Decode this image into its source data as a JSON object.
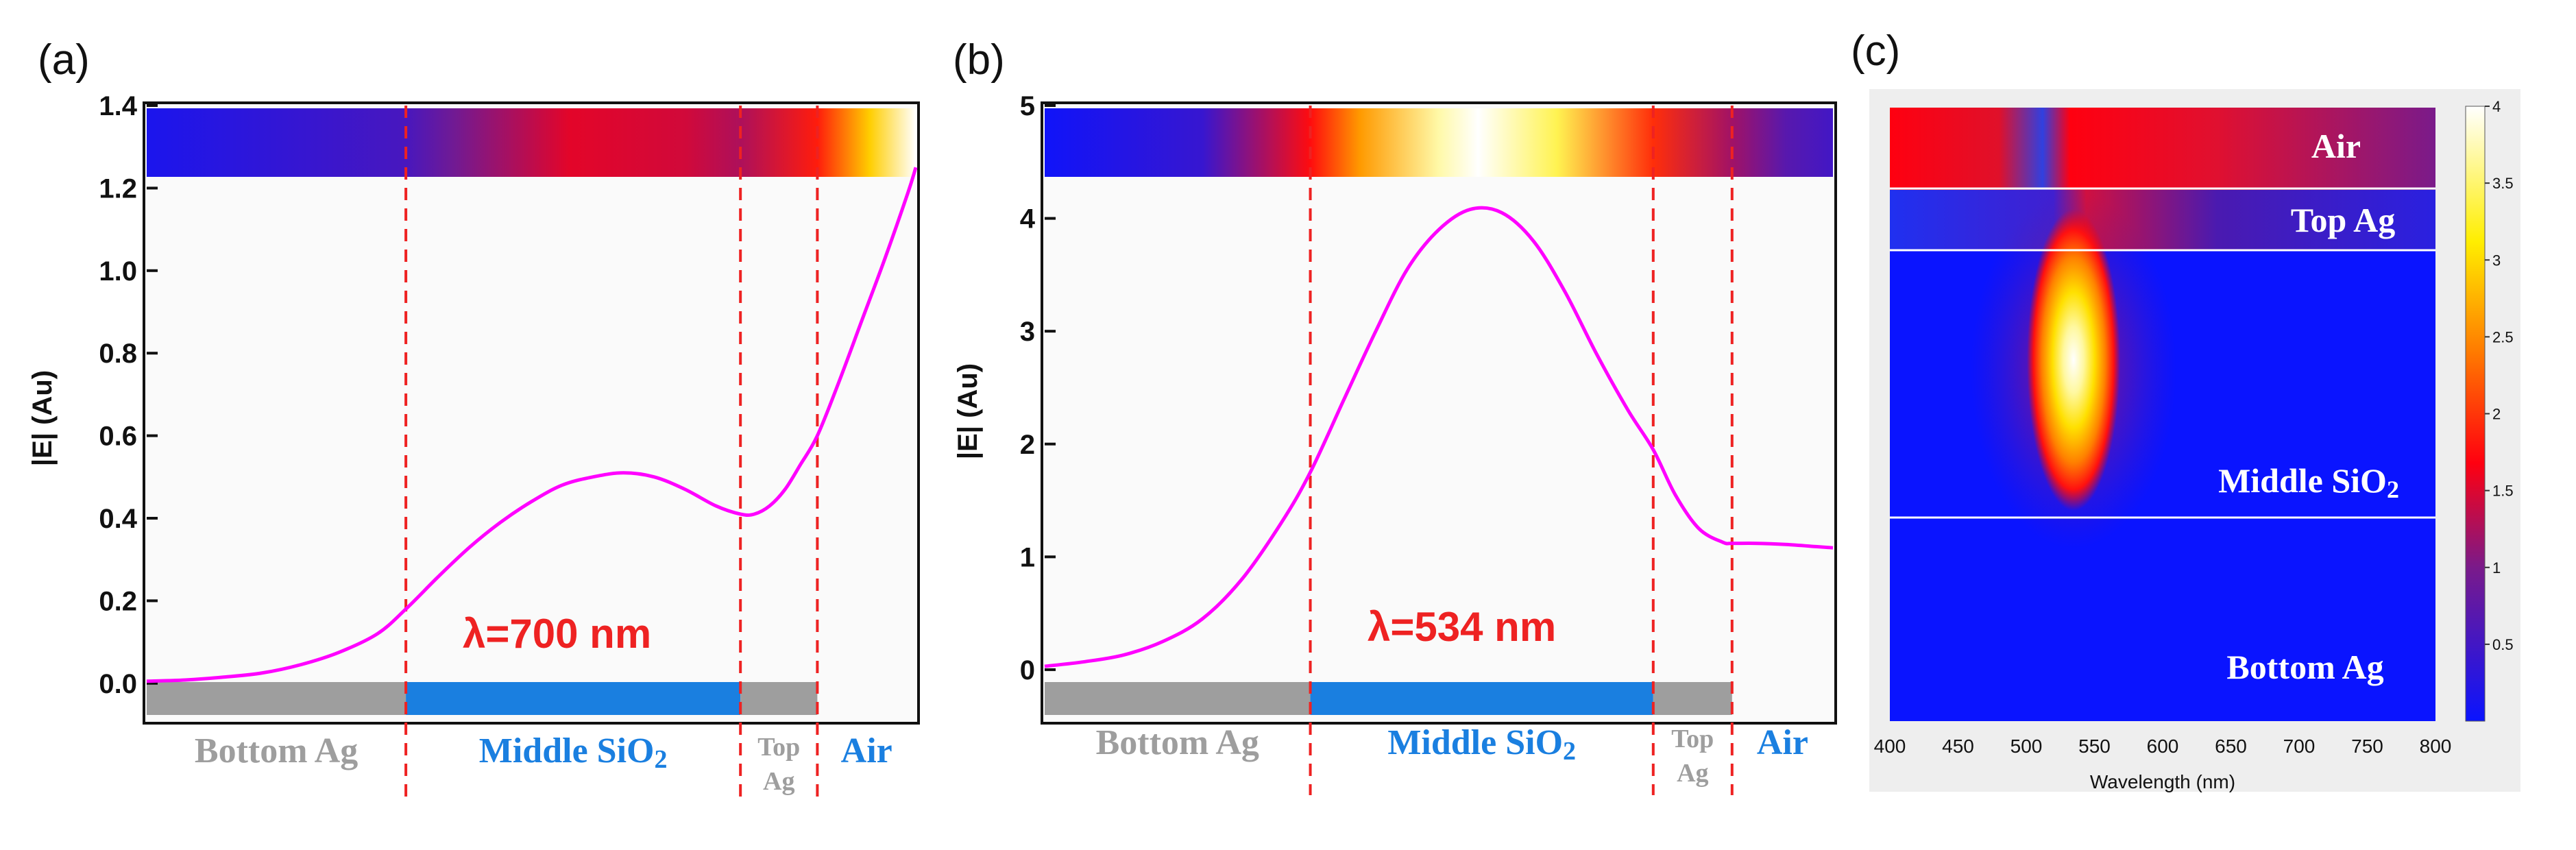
{
  "chart_data": [
    {
      "panel": "(a)",
      "type": "line",
      "ylabel": "|E| (Au)",
      "ylim": [
        -0.09,
        1.4
      ],
      "yticks": [
        "0.0",
        "0.2",
        "0.4",
        "0.6",
        "0.8",
        "1.0",
        "1.2",
        "1.4"
      ],
      "annotation": "λ=700 nm",
      "layers": [
        {
          "name": "Bottom Ag",
          "label": "Bottom Ag",
          "color": "#9e9e9e",
          "from": 0.0,
          "to": 0.337
        },
        {
          "name": "Middle SiO2",
          "label": "Middle SiO2",
          "color": "#1a7fe0",
          "from": 0.337,
          "to": 0.772
        },
        {
          "name": "Top Ag",
          "label": "Top\nAg",
          "color": "#9e9e9e",
          "from": 0.772,
          "to": 0.872
        },
        {
          "name": "Air",
          "label": "Air",
          "color": "#1a7fe0",
          "from": 0.872,
          "to": 1.0
        }
      ],
      "series": [
        {
          "name": "|E|",
          "color": "#ff00ff",
          "x": [
            0.0,
            0.05,
            0.1,
            0.15,
            0.2,
            0.25,
            0.3,
            0.337,
            0.38,
            0.42,
            0.46,
            0.5,
            0.54,
            0.58,
            0.62,
            0.66,
            0.7,
            0.74,
            0.772,
            0.79,
            0.81,
            0.83,
            0.85,
            0.872,
            0.9,
            0.93,
            0.96,
            0.99,
            1.0
          ],
          "y": [
            0.005,
            0.008,
            0.015,
            0.025,
            0.045,
            0.075,
            0.12,
            0.18,
            0.26,
            0.33,
            0.39,
            0.44,
            0.48,
            0.5,
            0.51,
            0.5,
            0.47,
            0.43,
            0.41,
            0.41,
            0.43,
            0.47,
            0.53,
            0.6,
            0.73,
            0.88,
            1.03,
            1.19,
            1.25
          ]
        }
      ],
      "field_strip": [
        {
          "x": 0.0,
          "value": 0.05
        },
        {
          "x": 0.337,
          "value": 0.18
        },
        {
          "x": 0.4,
          "value": 0.3
        },
        {
          "x": 0.55,
          "value": 0.5
        },
        {
          "x": 0.7,
          "value": 0.47
        },
        {
          "x": 0.772,
          "value": 0.41
        },
        {
          "x": 0.872,
          "value": 0.6
        },
        {
          "x": 0.94,
          "value": 0.95
        },
        {
          "x": 1.0,
          "value": 1.3
        }
      ]
    },
    {
      "panel": "(b)",
      "type": "line",
      "ylabel": "|E| (Au)",
      "ylim": [
        -0.45,
        5.0
      ],
      "yticks": [
        "0",
        "1",
        "2",
        "3",
        "4",
        "5"
      ],
      "annotation": "λ=534 nm",
      "layers": [
        {
          "name": "Bottom Ag",
          "label": "Bottom Ag",
          "color": "#9e9e9e",
          "from": 0.0,
          "to": 0.337
        },
        {
          "name": "Middle SiO2",
          "label": "Middle SiO2",
          "color": "#1a7fe0",
          "from": 0.337,
          "to": 0.772
        },
        {
          "name": "Top Ag",
          "label": "Top\nAg",
          "color": "#9e9e9e",
          "from": 0.772,
          "to": 0.872
        },
        {
          "name": "Air",
          "label": "Air",
          "color": "#1a7fe0",
          "from": 0.872,
          "to": 1.0
        }
      ],
      "series": [
        {
          "name": "|E|",
          "color": "#ff00ff",
          "x": [
            0.0,
            0.05,
            0.1,
            0.15,
            0.2,
            0.25,
            0.3,
            0.337,
            0.38,
            0.42,
            0.46,
            0.5,
            0.54,
            0.58,
            0.62,
            0.66,
            0.7,
            0.74,
            0.772,
            0.8,
            0.83,
            0.86,
            0.872,
            0.9,
            0.94,
            0.98,
            1.0
          ],
          "y": [
            0.03,
            0.07,
            0.13,
            0.25,
            0.45,
            0.8,
            1.3,
            1.75,
            2.4,
            3.0,
            3.55,
            3.9,
            4.08,
            4.05,
            3.8,
            3.35,
            2.8,
            2.3,
            1.95,
            1.55,
            1.25,
            1.13,
            1.12,
            1.12,
            1.11,
            1.09,
            1.08
          ]
        }
      ],
      "field_strip": [
        {
          "x": 0.0,
          "value": 0.05
        },
        {
          "x": 0.2,
          "value": 0.4
        },
        {
          "x": 0.337,
          "value": 1.75
        },
        {
          "x": 0.4,
          "value": 2.6
        },
        {
          "x": 0.5,
          "value": 3.7
        },
        {
          "x": 0.55,
          "value": 4.1
        },
        {
          "x": 0.65,
          "value": 3.4
        },
        {
          "x": 0.772,
          "value": 1.95
        },
        {
          "x": 0.872,
          "value": 1.2
        },
        {
          "x": 0.94,
          "value": 0.7
        },
        {
          "x": 1.0,
          "value": 0.5
        }
      ]
    },
    {
      "panel": "(c)",
      "type": "heatmap",
      "xlabel": "Wavelength (nm)",
      "xlim": [
        400,
        800
      ],
      "xticks": [
        "400",
        "450",
        "500",
        "550",
        "600",
        "650",
        "700",
        "750",
        "800"
      ],
      "colorbar": {
        "min": 0,
        "max": 4,
        "ticks": [
          "0.5",
          "1",
          "1.5",
          "2",
          "2.5",
          "3",
          "3.5",
          "4"
        ]
      },
      "peak_wavelength": 534,
      "peak_value": 4,
      "region_labels": [
        "Air",
        "Top Ag",
        "Middle SiO2",
        "Bottom Ag"
      ]
    }
  ]
}
